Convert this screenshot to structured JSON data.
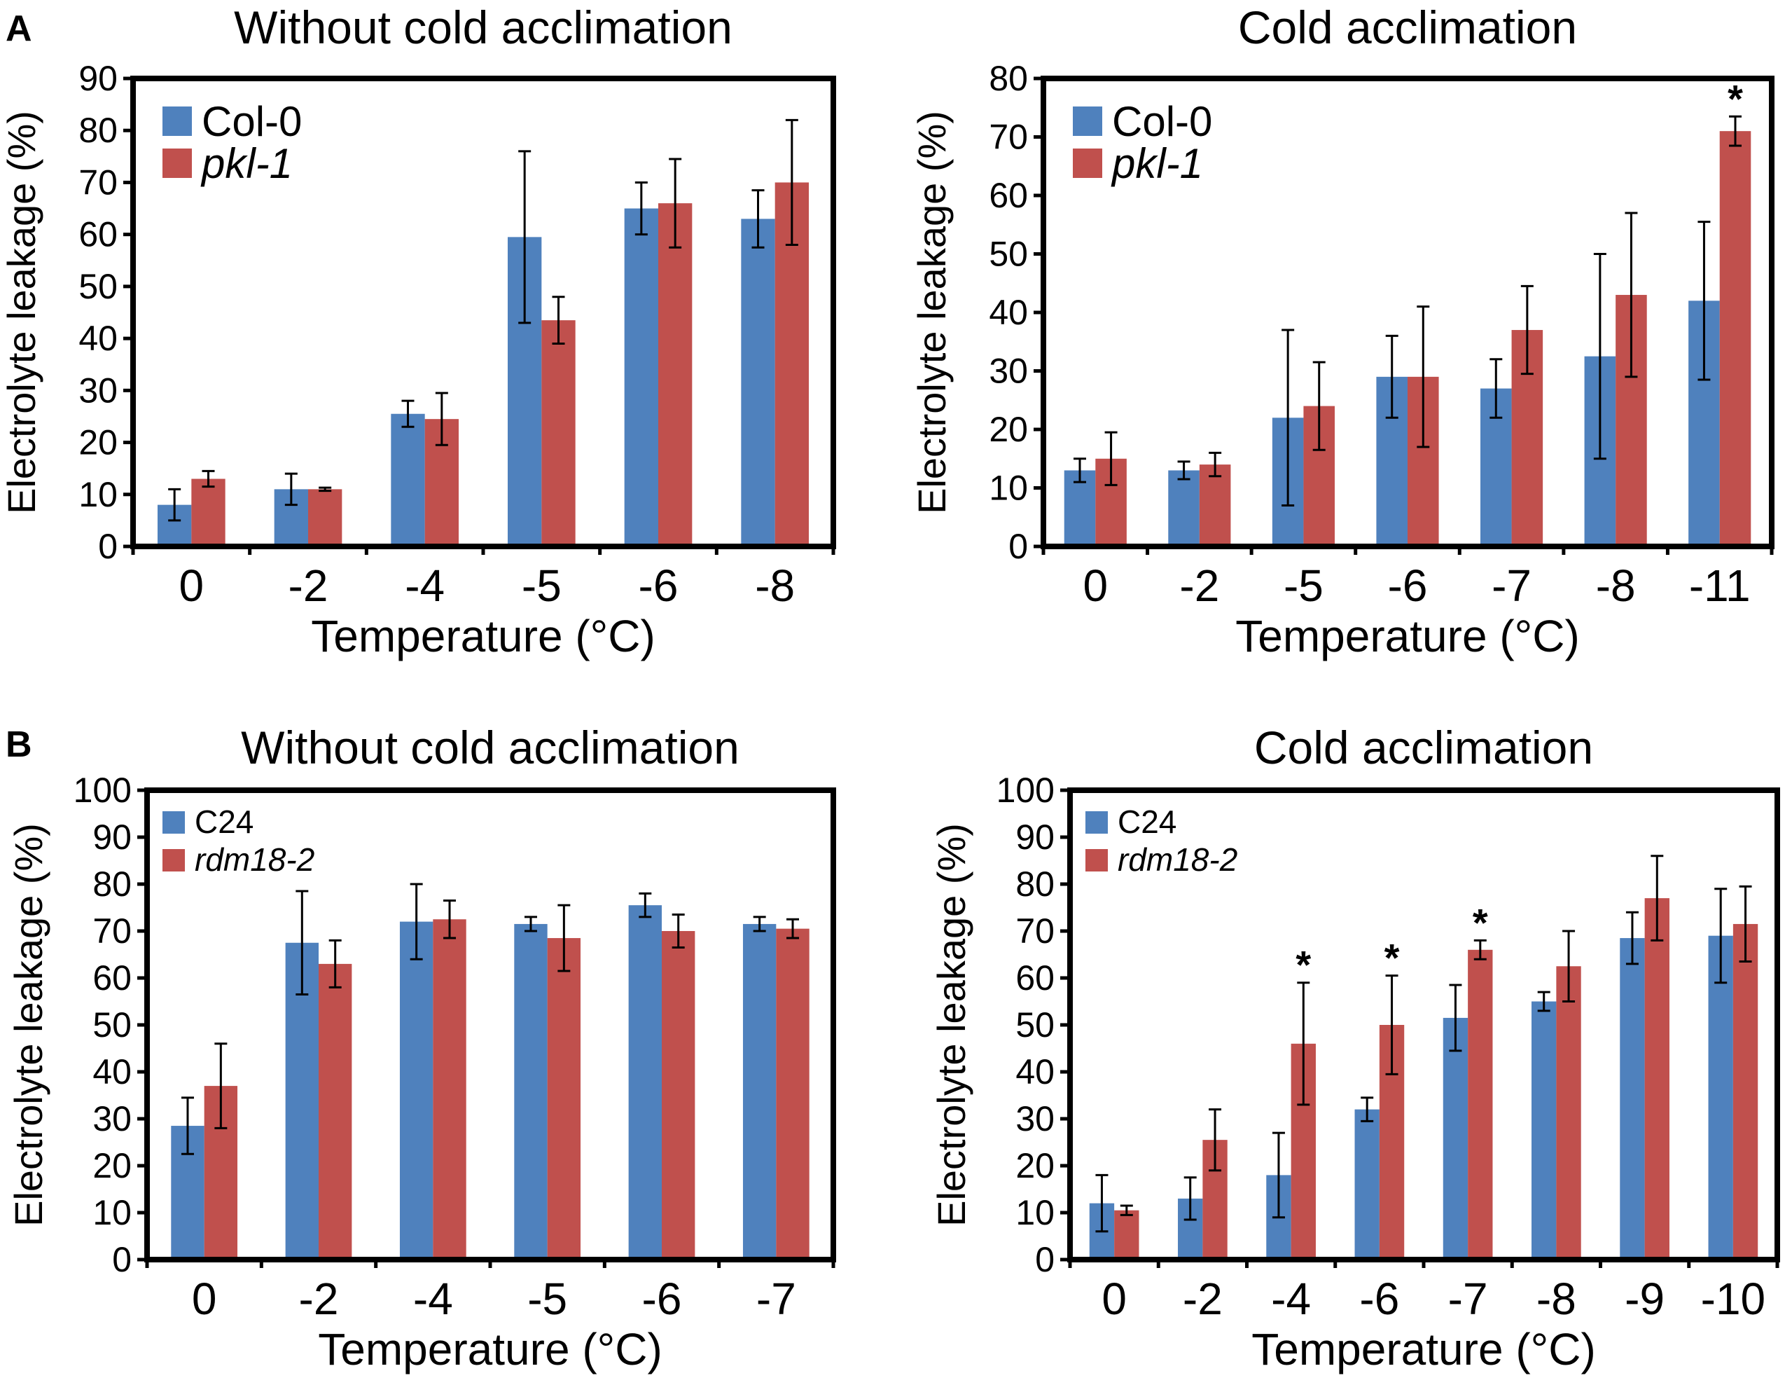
{
  "figure": {
    "panel_letters": [
      "A",
      "B"
    ],
    "colors": {
      "series1": "#4f81bd",
      "series2": "#c0504d",
      "axis": "#000000"
    }
  },
  "chart_data": [
    {
      "type": "bar",
      "panel": "A",
      "title": "Without cold acclimation",
      "xlabel": "Temperature (°C)",
      "ylabel": "Electrolyte leakage (%)",
      "ylim": [
        0,
        90
      ],
      "yticks": [
        0,
        10,
        20,
        30,
        40,
        50,
        60,
        70,
        80,
        90
      ],
      "categories": [
        "0",
        "-2",
        "-4",
        "-5",
        "-6",
        "-8"
      ],
      "series": [
        {
          "name": "Col-0",
          "italic": false,
          "values": [
            8,
            11,
            25.5,
            59.5,
            65,
            63
          ],
          "errors": [
            3,
            3,
            2.5,
            16.5,
            5,
            5.5
          ]
        },
        {
          "name": "pkl-1",
          "italic": true,
          "values": [
            13,
            11,
            24.5,
            43.5,
            66,
            70
          ],
          "errors": [
            1.5,
            0.3,
            5,
            4.5,
            8.5,
            12
          ]
        }
      ],
      "significance": [],
      "legend_position": "top-left"
    },
    {
      "type": "bar",
      "panel": "A",
      "title": "Cold acclimation",
      "xlabel": "Temperature (°C)",
      "ylabel": "Electrolyte leakage (%)",
      "ylim": [
        0,
        80
      ],
      "yticks": [
        0,
        10,
        20,
        30,
        40,
        50,
        60,
        70,
        80
      ],
      "categories": [
        "0",
        "-2",
        "-5",
        "-6",
        "-7",
        "-8",
        "-11"
      ],
      "series": [
        {
          "name": "Col-0",
          "italic": false,
          "values": [
            13,
            13,
            22,
            29,
            27,
            32.5,
            42
          ],
          "errors": [
            2,
            1.5,
            15,
            7,
            5,
            17.5,
            13.5
          ]
        },
        {
          "name": "pkl-1",
          "italic": true,
          "values": [
            15,
            14,
            24,
            29,
            37,
            43,
            71
          ],
          "errors": [
            4.5,
            2,
            7.5,
            12,
            7.5,
            14,
            2.5
          ]
        }
      ],
      "significance": [
        {
          "category": "-11",
          "series": 1,
          "label": "*"
        }
      ],
      "legend_position": "top-left"
    },
    {
      "type": "bar",
      "panel": "B",
      "title": "Without cold acclimation",
      "xlabel": "Temperature (°C)",
      "ylabel": "Electrolyte leakage (%)",
      "ylim": [
        0,
        100
      ],
      "yticks": [
        0,
        10,
        20,
        30,
        40,
        50,
        60,
        70,
        80,
        90,
        100
      ],
      "categories": [
        "0",
        "-2",
        "-4",
        "-5",
        "-6",
        "-7"
      ],
      "series": [
        {
          "name": "C24",
          "italic": false,
          "values": [
            28.5,
            67.5,
            72,
            71.5,
            75.5,
            71.5
          ],
          "errors": [
            6,
            11,
            8,
            1.5,
            2.5,
            1.5
          ]
        },
        {
          "name": "rdm18-2",
          "italic": true,
          "values": [
            37,
            63,
            72.5,
            68.5,
            70,
            70.5
          ],
          "errors": [
            9,
            5,
            4,
            7,
            3.5,
            2
          ]
        }
      ],
      "significance": [],
      "legend_position": "top-left"
    },
    {
      "type": "bar",
      "panel": "B",
      "title": "Cold acclimation",
      "xlabel": "Temperature (°C)",
      "ylabel": "Electrolyte leakage (%)",
      "ylim": [
        0,
        100
      ],
      "yticks": [
        0,
        10,
        20,
        30,
        40,
        50,
        60,
        70,
        80,
        90,
        100
      ],
      "categories": [
        "0",
        "-2",
        "-4",
        "-6",
        "-7",
        "-8",
        "-9",
        "-10"
      ],
      "series": [
        {
          "name": "C24",
          "italic": false,
          "values": [
            12,
            13,
            18,
            32,
            51.5,
            55,
            68.5,
            69
          ],
          "errors": [
            6,
            4.5,
            9,
            2.5,
            7,
            2,
            5.5,
            10
          ]
        },
        {
          "name": "rdm18-2",
          "italic": true,
          "values": [
            10.5,
            25.5,
            46,
            50,
            66,
            62.5,
            77,
            71.5
          ],
          "errors": [
            1,
            6.5,
            13,
            10.5,
            2,
            7.5,
            9,
            8
          ]
        }
      ],
      "significance": [
        {
          "category": "-4",
          "series": 1,
          "label": "*"
        },
        {
          "category": "-6",
          "series": 1,
          "label": "*"
        },
        {
          "category": "-7",
          "series": 1,
          "label": "*"
        }
      ],
      "legend_position": "top-left"
    }
  ]
}
